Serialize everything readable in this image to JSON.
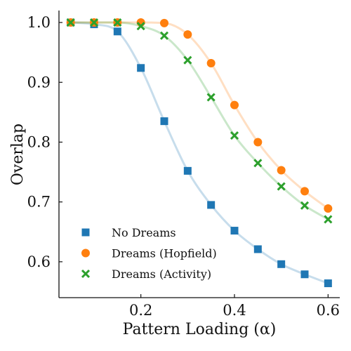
{
  "chart_data": {
    "type": "scatter",
    "xlabel": "Pattern Loading (α)",
    "ylabel": "Overlap",
    "xlim": [
      0.025,
      0.625
    ],
    "ylim": [
      0.54,
      1.02
    ],
    "xticks": [
      0.2,
      0.4,
      0.6
    ],
    "xtick_labels": [
      "0.2",
      "0.4",
      "0.6"
    ],
    "yticks": [
      0.6,
      0.7,
      0.8,
      0.9,
      1.0
    ],
    "ytick_labels": [
      "0.6",
      "0.7",
      "0.8",
      "0.9",
      "1.0"
    ],
    "legend_position": "lower-left",
    "grid": false,
    "x": [
      0.05,
      0.1,
      0.15,
      0.2,
      0.25,
      0.3,
      0.35,
      0.4,
      0.45,
      0.5,
      0.55,
      0.6
    ],
    "series": [
      {
        "name": "No Dreams",
        "marker": "square",
        "color": "#1f77b4",
        "values": [
          1.0,
          0.997,
          0.985,
          0.924,
          0.835,
          0.752,
          0.695,
          0.652,
          0.621,
          0.596,
          0.579,
          0.564
        ]
      },
      {
        "name": "Dreams (Hopfield)",
        "marker": "circle",
        "color": "#ff7f0e",
        "values": [
          1.0,
          1.0,
          1.0,
          1.0,
          0.999,
          0.98,
          0.932,
          0.862,
          0.8,
          0.753,
          0.718,
          0.689
        ]
      },
      {
        "name": "Dreams (Activity)",
        "marker": "x",
        "color": "#2ca02c",
        "values": [
          1.0,
          1.0,
          1.0,
          0.994,
          0.978,
          0.937,
          0.875,
          0.811,
          0.765,
          0.726,
          0.694,
          0.671
        ]
      }
    ]
  }
}
